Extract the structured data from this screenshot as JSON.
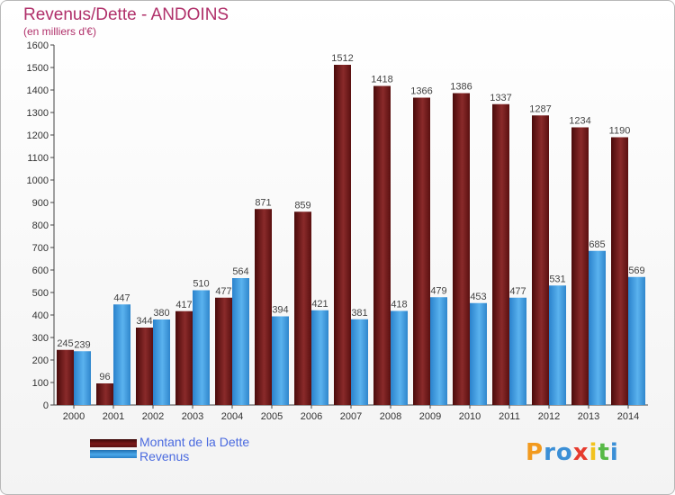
{
  "title": "Revenus/Dette - ANDOINS",
  "subtitle": "(en milliers d'€)",
  "chart_data": {
    "type": "bar",
    "categories": [
      "2000",
      "2001",
      "2002",
      "2003",
      "2004",
      "2005",
      "2006",
      "2007",
      "2008",
      "2009",
      "2010",
      "2011",
      "2012",
      "2013",
      "2014"
    ],
    "series": [
      {
        "name": "Montant de la Dette",
        "values": [
          245,
          96,
          344,
          417,
          477,
          871,
          859,
          1512,
          1418,
          1366,
          1386,
          1337,
          1287,
          1234,
          1190
        ],
        "color": "#7a1a1a"
      },
      {
        "name": "Revenus",
        "values": [
          239,
          447,
          380,
          510,
          564,
          394,
          421,
          381,
          418,
          479,
          453,
          477,
          531,
          685,
          569
        ],
        "color": "#3d9be0"
      }
    ],
    "ylim": [
      0,
      1600
    ],
    "ytick_step": 100,
    "grid": false
  },
  "legend": {
    "dette_label": "Montant de la Dette",
    "revenus_label": "Revenus"
  },
  "logo": {
    "text": "Proxiti",
    "letters": [
      "P",
      "r",
      "o",
      "x",
      "i",
      "t",
      "i"
    ],
    "colors": [
      "#f29a1e",
      "#3b8fd6",
      "#3b8fd6",
      "#e63b2e",
      "#f2c21e",
      "#58b947",
      "#3b8fd6"
    ]
  }
}
